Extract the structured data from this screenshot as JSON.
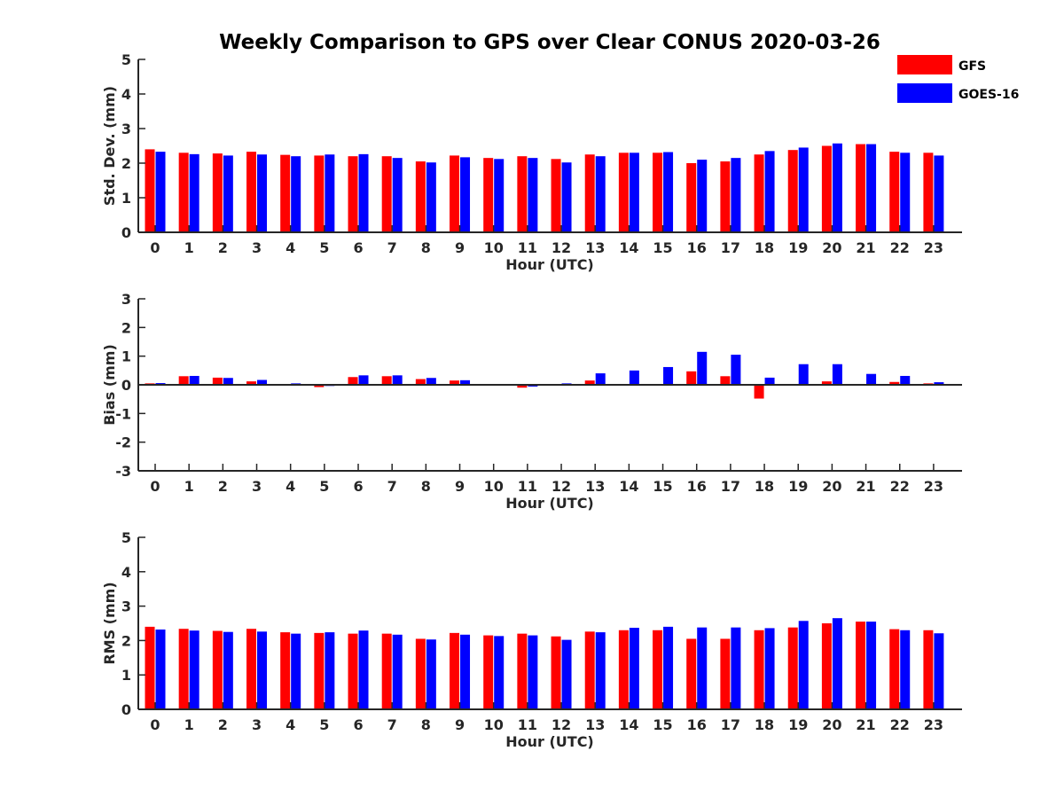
{
  "title": "Weekly Comparison to GPS over Clear CONUS 2020-03-26",
  "colors": {
    "GFS": "#ff0000",
    "GOES-16": "#0000ff",
    "axis": "#262626"
  },
  "legend": {
    "placement": "top-right",
    "entries": [
      "GFS",
      "GOES-16"
    ]
  },
  "chart_data": [
    {
      "type": "bar",
      "categories": [
        "0",
        "1",
        "2",
        "3",
        "4",
        "5",
        "6",
        "7",
        "8",
        "9",
        "10",
        "11",
        "12",
        "13",
        "14",
        "15",
        "16",
        "17",
        "18",
        "19",
        "20",
        "21",
        "22",
        "23"
      ],
      "xlabel": "Hour (UTC)",
      "ylabel": "Std. Dev. (mm)",
      "ylim": [
        0,
        5
      ],
      "yticks": [
        "0",
        "1",
        "2",
        "3",
        "4",
        "5"
      ],
      "series": [
        {
          "name": "GFS",
          "values": [
            2.4,
            2.3,
            2.28,
            2.33,
            2.24,
            2.22,
            2.2,
            2.2,
            2.05,
            2.22,
            2.15,
            2.2,
            2.12,
            2.25,
            2.3,
            2.3,
            2.0,
            2.05,
            2.25,
            2.38,
            2.5,
            2.55,
            2.33,
            2.3
          ]
        },
        {
          "name": "GOES-16",
          "values": [
            2.33,
            2.26,
            2.22,
            2.25,
            2.2,
            2.25,
            2.26,
            2.15,
            2.02,
            2.17,
            2.12,
            2.15,
            2.02,
            2.2,
            2.3,
            2.32,
            2.1,
            2.15,
            2.35,
            2.45,
            2.57,
            2.55,
            2.3,
            2.22
          ]
        }
      ]
    },
    {
      "type": "bar",
      "categories": [
        "0",
        "1",
        "2",
        "3",
        "4",
        "5",
        "6",
        "7",
        "8",
        "9",
        "10",
        "11",
        "12",
        "13",
        "14",
        "15",
        "16",
        "17",
        "18",
        "19",
        "20",
        "21",
        "22",
        "23"
      ],
      "xlabel": "Hour (UTC)",
      "ylabel": "Bias (mm)",
      "ylim": [
        -3,
        3
      ],
      "yticks": [
        "-3",
        "-2",
        "-1",
        "0",
        "1",
        "2",
        "3"
      ],
      "series": [
        {
          "name": "GFS",
          "values": [
            0.05,
            0.3,
            0.25,
            0.12,
            0.02,
            -0.08,
            0.27,
            0.3,
            0.2,
            0.15,
            0.0,
            -0.1,
            0.0,
            0.15,
            0.02,
            0.03,
            0.47,
            0.3,
            -0.48,
            0.03,
            0.12,
            0.0,
            0.1,
            0.05
          ]
        },
        {
          "name": "GOES-16",
          "values": [
            0.06,
            0.31,
            0.24,
            0.17,
            0.05,
            -0.04,
            0.33,
            0.33,
            0.24,
            0.16,
            0.0,
            -0.06,
            0.05,
            0.4,
            0.5,
            0.62,
            1.15,
            1.05,
            0.25,
            0.72,
            0.72,
            0.38,
            0.31,
            0.09
          ]
        }
      ]
    },
    {
      "type": "bar",
      "categories": [
        "0",
        "1",
        "2",
        "3",
        "4",
        "5",
        "6",
        "7",
        "8",
        "9",
        "10",
        "11",
        "12",
        "13",
        "14",
        "15",
        "16",
        "17",
        "18",
        "19",
        "20",
        "21",
        "22",
        "23"
      ],
      "xlabel": "Hour (UTC)",
      "ylabel": "RMS (mm)",
      "ylim": [
        0,
        5
      ],
      "yticks": [
        "0",
        "1",
        "2",
        "3",
        "4",
        "5"
      ],
      "series": [
        {
          "name": "GFS",
          "values": [
            2.4,
            2.34,
            2.28,
            2.34,
            2.24,
            2.22,
            2.2,
            2.2,
            2.05,
            2.22,
            2.15,
            2.2,
            2.12,
            2.26,
            2.3,
            2.3,
            2.05,
            2.05,
            2.3,
            2.38,
            2.5,
            2.55,
            2.33,
            2.3
          ]
        },
        {
          "name": "GOES-16",
          "values": [
            2.32,
            2.29,
            2.25,
            2.26,
            2.2,
            2.24,
            2.29,
            2.17,
            2.03,
            2.17,
            2.13,
            2.15,
            2.02,
            2.24,
            2.37,
            2.4,
            2.38,
            2.38,
            2.36,
            2.57,
            2.65,
            2.55,
            2.3,
            2.21
          ]
        }
      ]
    }
  ]
}
